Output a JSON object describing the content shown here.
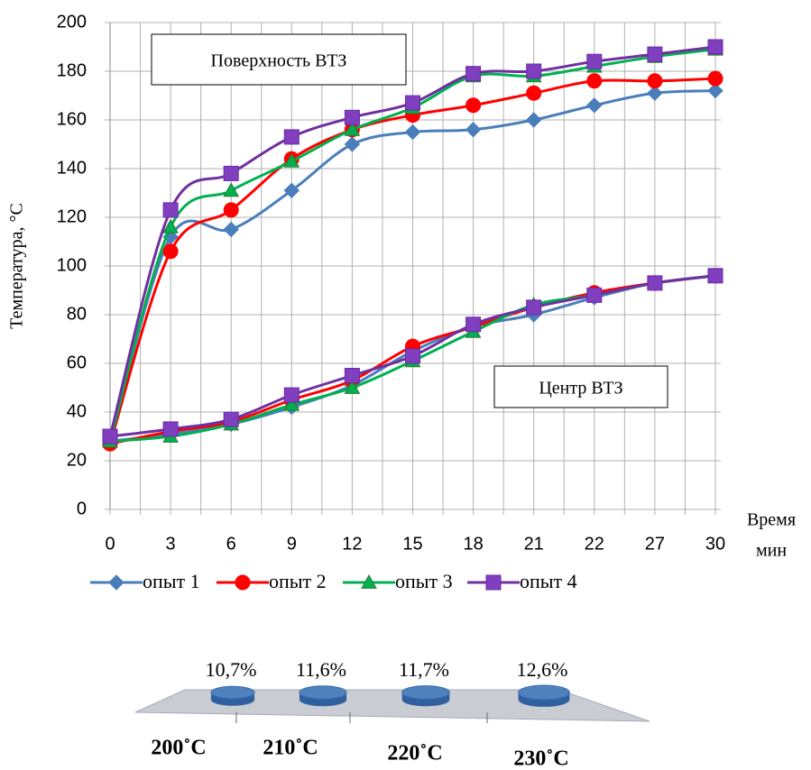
{
  "chart_data": [
    {
      "type": "line",
      "y_label": "Температура, °С",
      "x_label": [
        "Время",
        "мин"
      ],
      "categories": [
        "0",
        "3",
        "6",
        "9",
        "12",
        "15",
        "18",
        "21",
        "22",
        "27",
        "30"
      ],
      "ylim": [
        0,
        200
      ],
      "yticks": [
        0,
        20,
        40,
        60,
        80,
        100,
        120,
        140,
        160,
        180,
        200
      ],
      "grid": true,
      "legend": [
        {
          "name": "опыт 1",
          "color": "#4a7ebb",
          "marker": "diamond"
        },
        {
          "name": "опыт 2",
          "color": "#ff0000",
          "marker": "circle"
        },
        {
          "name": "опыт 3",
          "color": "#00b050",
          "marker": "triangle"
        },
        {
          "name": "опыт 4",
          "color": "#7030a0",
          "marker": "square"
        }
      ],
      "groups": [
        {
          "label": "Поверхность ВТЗ",
          "series": [
            {
              "values": [
                28,
                112,
                115,
                131,
                150,
                155,
                156,
                160,
                166,
                171,
                172
              ]
            },
            {
              "values": [
                27,
                106,
                123,
                144,
                156,
                162,
                166,
                171,
                176,
                176,
                177
              ]
            },
            {
              "values": [
                28,
                116,
                131,
                143,
                156,
                165,
                178,
                178,
                182,
                186,
                189
              ]
            },
            {
              "values": [
                30,
                123,
                138,
                153,
                161,
                167,
                179,
                180,
                184,
                187,
                190
              ]
            }
          ]
        },
        {
          "label": "Центр ВТЗ",
          "series": [
            {
              "values": [
                28,
                31,
                35,
                42,
                51,
                65,
                75,
                80,
                87,
                93,
                96
              ]
            },
            {
              "values": [
                27,
                32,
                36,
                45,
                53,
                67,
                75,
                83,
                89,
                93,
                96
              ]
            },
            {
              "values": [
                28,
                30,
                35,
                43,
                50,
                61,
                73,
                84,
                88,
                93,
                96
              ]
            },
            {
              "values": [
                30,
                33,
                37,
                47,
                55,
                63,
                76,
                83,
                88,
                93,
                96
              ]
            }
          ]
        }
      ]
    },
    {
      "type": "bubble3d",
      "categories": [
        "200˚С",
        "210˚С",
        "220˚С",
        "230˚С"
      ],
      "values": [
        10.7,
        11.6,
        11.7,
        12.6
      ],
      "value_labels": [
        "10,7%",
        "11,6%",
        "11,7%",
        "12,6%"
      ],
      "color": "#4f81bd"
    }
  ]
}
